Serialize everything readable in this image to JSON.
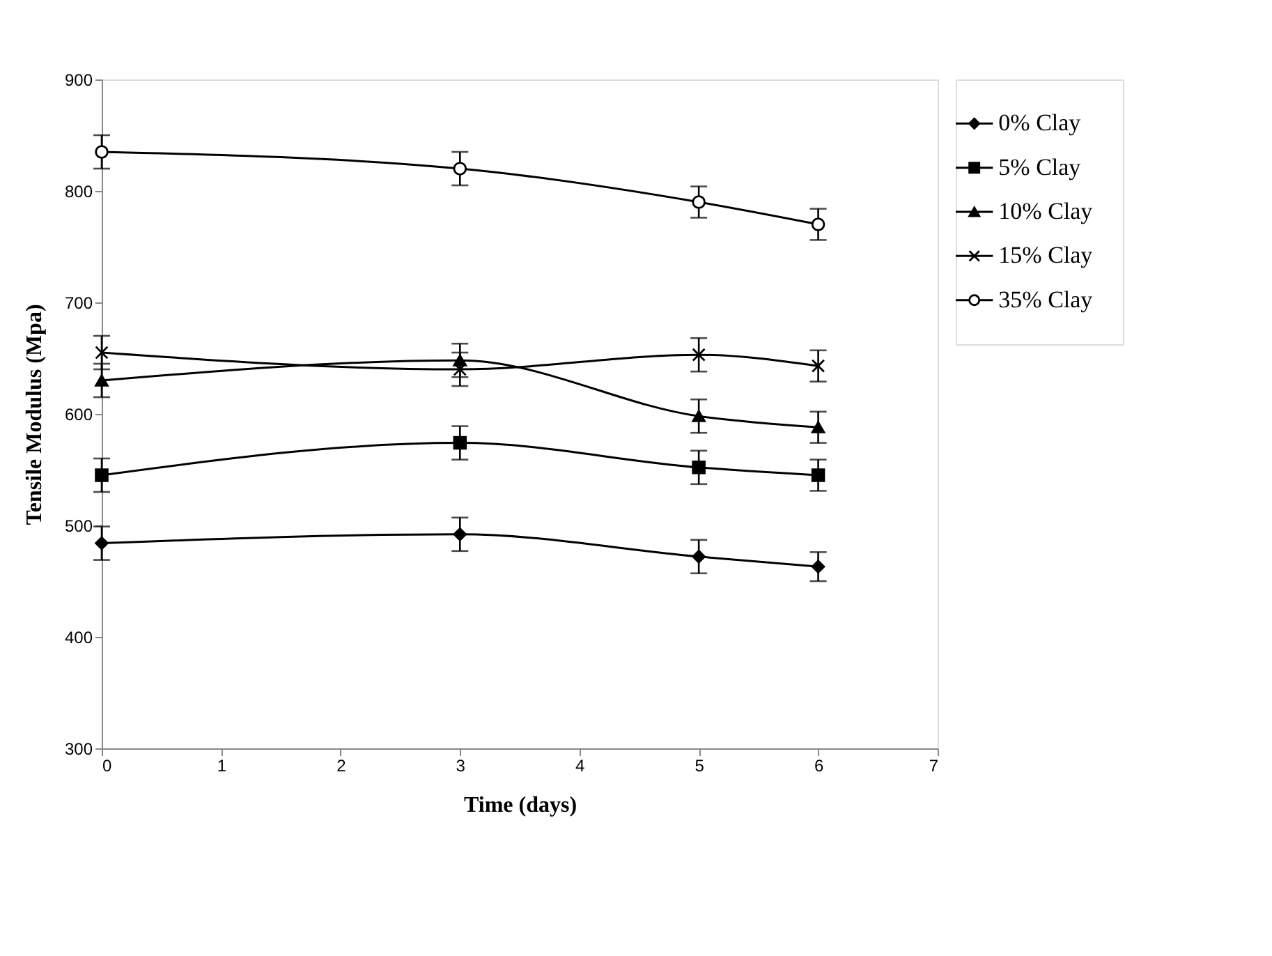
{
  "chart_data": {
    "type": "line",
    "xlabel": "Time (days)",
    "ylabel": "Tensile Modulus  (Mpa)",
    "x": [
      0,
      3,
      5,
      6
    ],
    "series": [
      {
        "name": "0% Clay",
        "color": "#000000",
        "marker": "diamond",
        "values": [
          484,
          492,
          472,
          463
        ],
        "errors": [
          15,
          15,
          15,
          13
        ]
      },
      {
        "name": "5% Clay",
        "color": "#000000",
        "marker": "square",
        "values": [
          545,
          574,
          552,
          545
        ],
        "errors": [
          15,
          15,
          15,
          14
        ]
      },
      {
        "name": "10% Clay",
        "color": "#000000",
        "marker": "triangle",
        "values": [
          630,
          648,
          598,
          588
        ],
        "errors": [
          15,
          15,
          15,
          14
        ]
      },
      {
        "name": "15% Clay",
        "color": "#000000",
        "marker": "cross",
        "values": [
          655,
          640,
          653,
          643
        ],
        "errors": [
          15,
          15,
          15,
          14
        ]
      },
      {
        "name": "35% Clay",
        "color": "#000000",
        "marker": "circle",
        "values": [
          835,
          820,
          790,
          770
        ],
        "errors": [
          15,
          15,
          14,
          14
        ]
      }
    ],
    "xlim": [
      0,
      7
    ],
    "xticks": [
      0,
      1,
      2,
      3,
      4,
      5,
      6,
      7
    ],
    "ylim": [
      300,
      900
    ],
    "yticks": [
      300,
      400,
      500,
      600,
      700,
      800,
      900
    ],
    "grid": false,
    "legend": "right",
    "line_style": "solid"
  }
}
